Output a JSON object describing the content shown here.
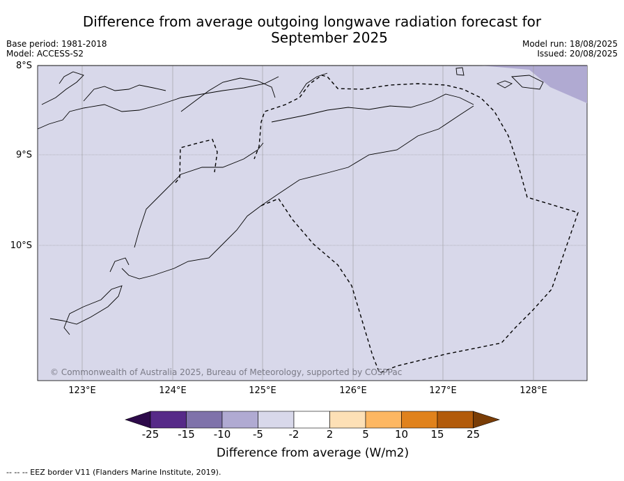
{
  "title": {
    "line1": "Difference from average outgoing longwave radiation forecast for",
    "line2": "September 2025"
  },
  "meta_left": {
    "base_period": "Base period: 1981-2018",
    "model": "Model: ACCESS-S2"
  },
  "meta_right": {
    "model_run": "Model run: 18/08/2025",
    "issued": "Issued: 20/08/2025"
  },
  "map": {
    "lat_labels": [
      "8°S",
      "9°S",
      "10°S"
    ],
    "lon_labels": [
      "123°E",
      "124°E",
      "125°E",
      "126°E",
      "127°E",
      "128°E"
    ],
    "background_color": "#d8d8ea",
    "anomaly_patch_color": "#b0aad2",
    "copyright": "© Commonwealth of Australia 2025, Bureau of Meteorology, supported by COSPPac",
    "eez_line_style": "dashed"
  },
  "colorbar": {
    "ticks": [
      "-25",
      "-15",
      "-10",
      "-5",
      "-2",
      "2",
      "5",
      "10",
      "15",
      "25"
    ],
    "colors": [
      "#2d0a4a",
      "#562a88",
      "#7f72aa",
      "#b0aad2",
      "#d8d8ea",
      "#ffffff",
      "#fde0b6",
      "#fdb762",
      "#e0821c",
      "#b25b0b",
      "#7a3d06"
    ],
    "title": "Difference from average (W/m2)"
  },
  "footer": "--  --  -- EEZ border V11 (Flanders Marine Institute, 2019)."
}
